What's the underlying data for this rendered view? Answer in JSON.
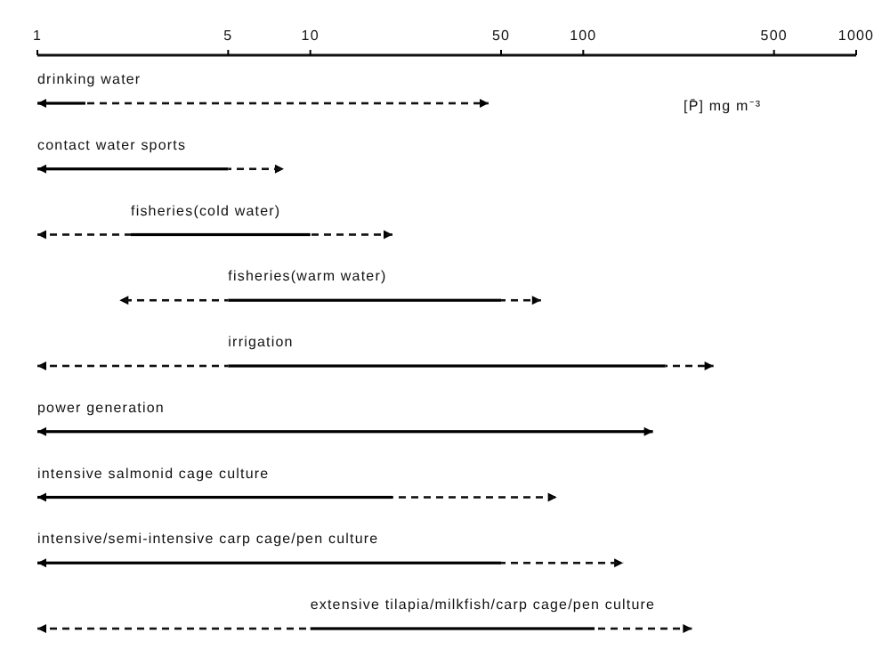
{
  "chart_data": {
    "type": "bar",
    "orientation": "horizontal",
    "log": "x",
    "xlim": [
      1,
      1000
    ],
    "xticks": [
      1,
      5,
      10,
      50,
      100,
      500,
      1000
    ],
    "categories": [
      "drinking water",
      "contact water sports",
      "fisheries(cold water)",
      "fisheries(warm water)",
      "irrigation",
      "power generation",
      "intensive salmonid cage culture",
      "intensive/semi-intensive carp cage/pen culture",
      "extensive tilapia/milkfish/carp cage/pen culture"
    ],
    "series": [
      {
        "color": "#000000",
        "line_style": "dashed",
        "base": [
          null,
          null,
          1,
          2,
          1,
          null,
          null,
          null,
          1
        ],
        "values": [
          null,
          null,
          1.2,
          3,
          4,
          null,
          null,
          null,
          9
        ]
      },
      {
        "color": "#000000",
        "line_style": "solid",
        "base": [
          1,
          1,
          2.2,
          5,
          5,
          1,
          1,
          1,
          10
        ],
        "values": [
          0.5,
          4,
          7.8,
          45,
          195,
          179,
          19,
          49,
          100
        ]
      },
      {
        "color": "#000000",
        "line_style": "dashed",
        "base": [
          1.5,
          5,
          10,
          50,
          200,
          null,
          20,
          50,
          110
        ],
        "values": [
          43.5,
          3,
          10,
          20,
          100,
          null,
          60,
          90,
          140
        ]
      }
    ],
    "annotations": [
      "[P̄]  mg m⁻³"
    ]
  }
}
